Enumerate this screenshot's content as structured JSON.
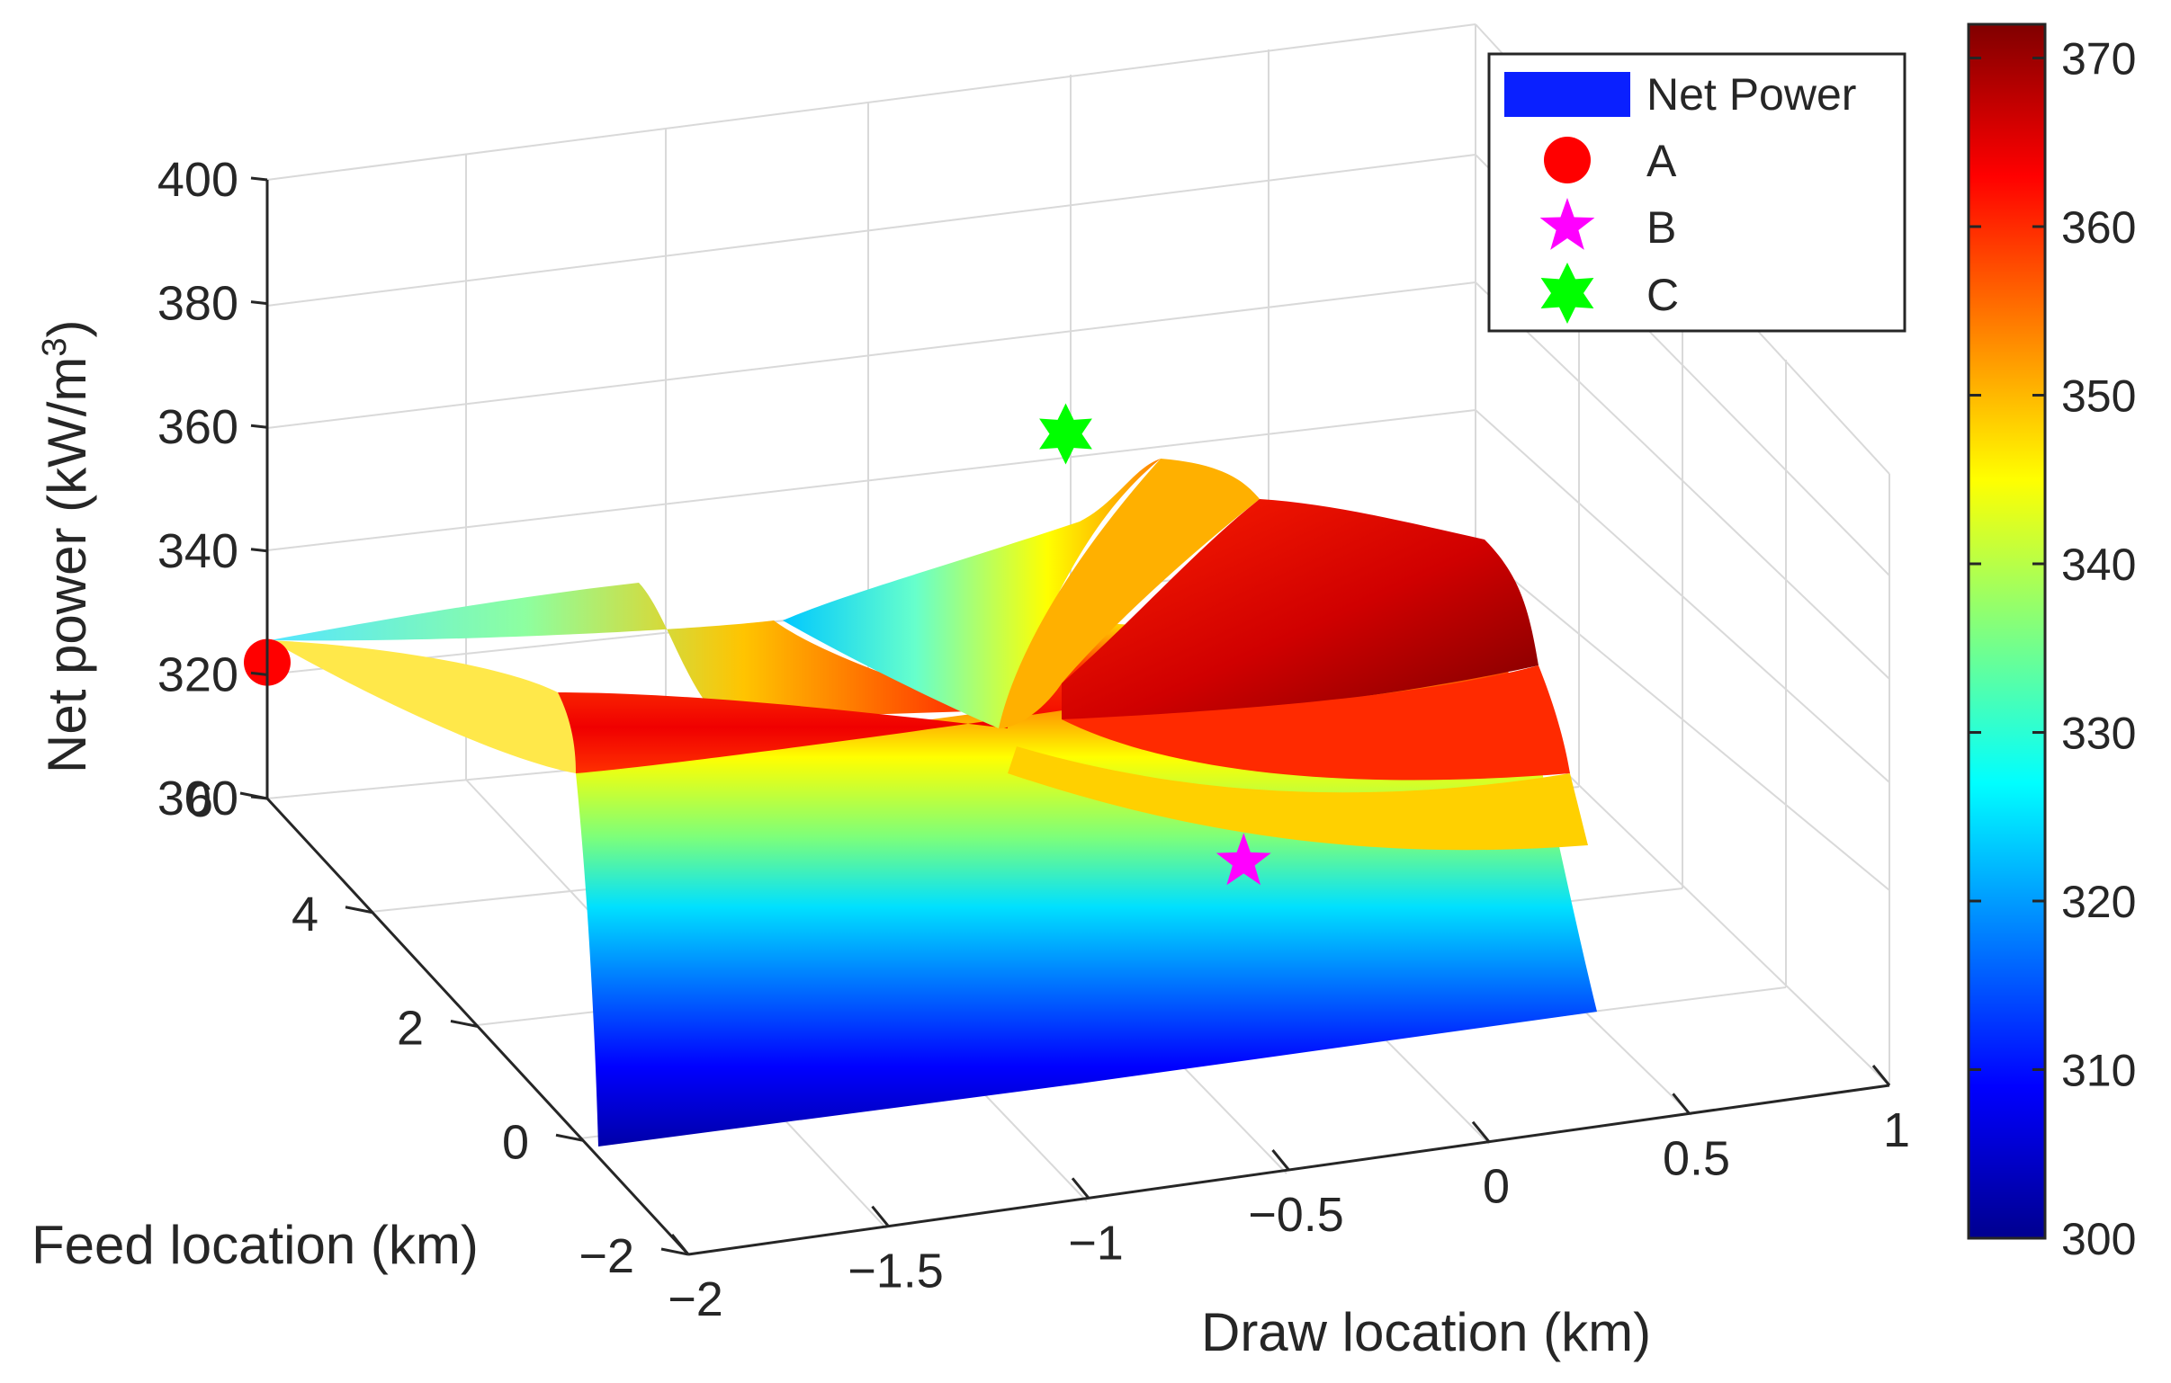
{
  "chart_data": {
    "type": "surface",
    "zlabel": "Net power (kW/m",
    "zlabel_superscript": "3",
    "zlabel_suffix": ")",
    "xlabel": "Draw location (km)",
    "ylabel": "Feed location (km)",
    "xlim": [
      -2,
      1
    ],
    "ylim": [
      -2,
      6
    ],
    "zlim": [
      300,
      400
    ],
    "x_ticks": [
      "−2",
      "−1.5",
      "−1",
      "−0.5",
      "0",
      "0.5",
      "1"
    ],
    "y_ticks": [
      "−2",
      "0",
      "2",
      "4",
      "6"
    ],
    "z_ticks": [
      "300",
      "320",
      "340",
      "360",
      "380",
      "400"
    ],
    "grid": true,
    "colormap": "jet",
    "colorbar": {
      "range": [
        300,
        372
      ],
      "ticks": [
        "300",
        "310",
        "320",
        "330",
        "340",
        "350",
        "360",
        "370"
      ]
    },
    "legend": {
      "position": "top-right",
      "entries": [
        {
          "label": "Net Power",
          "marker": "patch",
          "color": "#0a20ff"
        },
        {
          "label": "A",
          "marker": "circle",
          "color": "#ff0000"
        },
        {
          "label": "B",
          "marker": "pentagram",
          "color": "#ff00ff"
        },
        {
          "label": "C",
          "marker": "hexagram",
          "color": "#00ff00"
        }
      ]
    },
    "points": [
      {
        "name": "A",
        "x": -2.0,
        "y": 6.0,
        "z": 322
      },
      {
        "name": "B",
        "x": -0.35,
        "y": 0.0,
        "z": 330
      },
      {
        "name": "C",
        "x": -0.4,
        "y": 3.0,
        "z": 372
      }
    ]
  }
}
